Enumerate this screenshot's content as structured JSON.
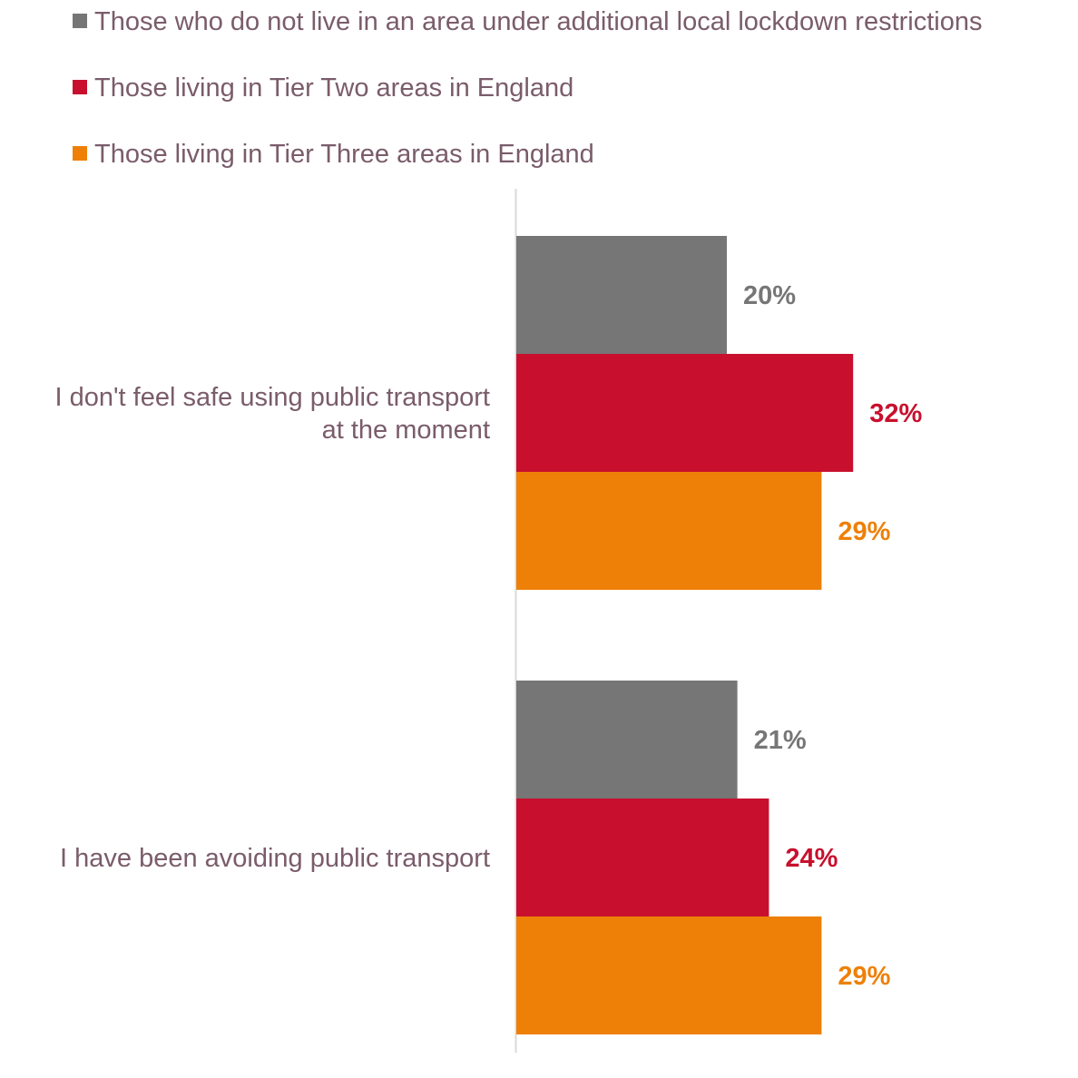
{
  "chart_data": {
    "type": "bar",
    "orientation": "horizontal",
    "categories": [
      [
        "I don't feel safe using public transport",
        "at the moment"
      ],
      [
        "I have been avoiding public transport"
      ]
    ],
    "series": [
      {
        "name": "Those who do not live in an area under additional local lockdown restrictions",
        "color": "#767676",
        "values": [
          20,
          21
        ],
        "labels": [
          "20%",
          "21%"
        ]
      },
      {
        "name": "Those living in Tier Two areas in England",
        "color": "#c8102e",
        "values": [
          32,
          24
        ],
        "labels": [
          "32%",
          "24%"
        ]
      },
      {
        "name": "Those living in Tier Three areas in England",
        "color": "#ee8008",
        "values": [
          29,
          29
        ],
        "labels": [
          "29%",
          "29%"
        ]
      }
    ],
    "legend_position": "top-left",
    "grid": false,
    "xlim": [
      0,
      100
    ]
  },
  "colors": {
    "axis": "#d9d9d9",
    "text": "#7a5c6a"
  }
}
